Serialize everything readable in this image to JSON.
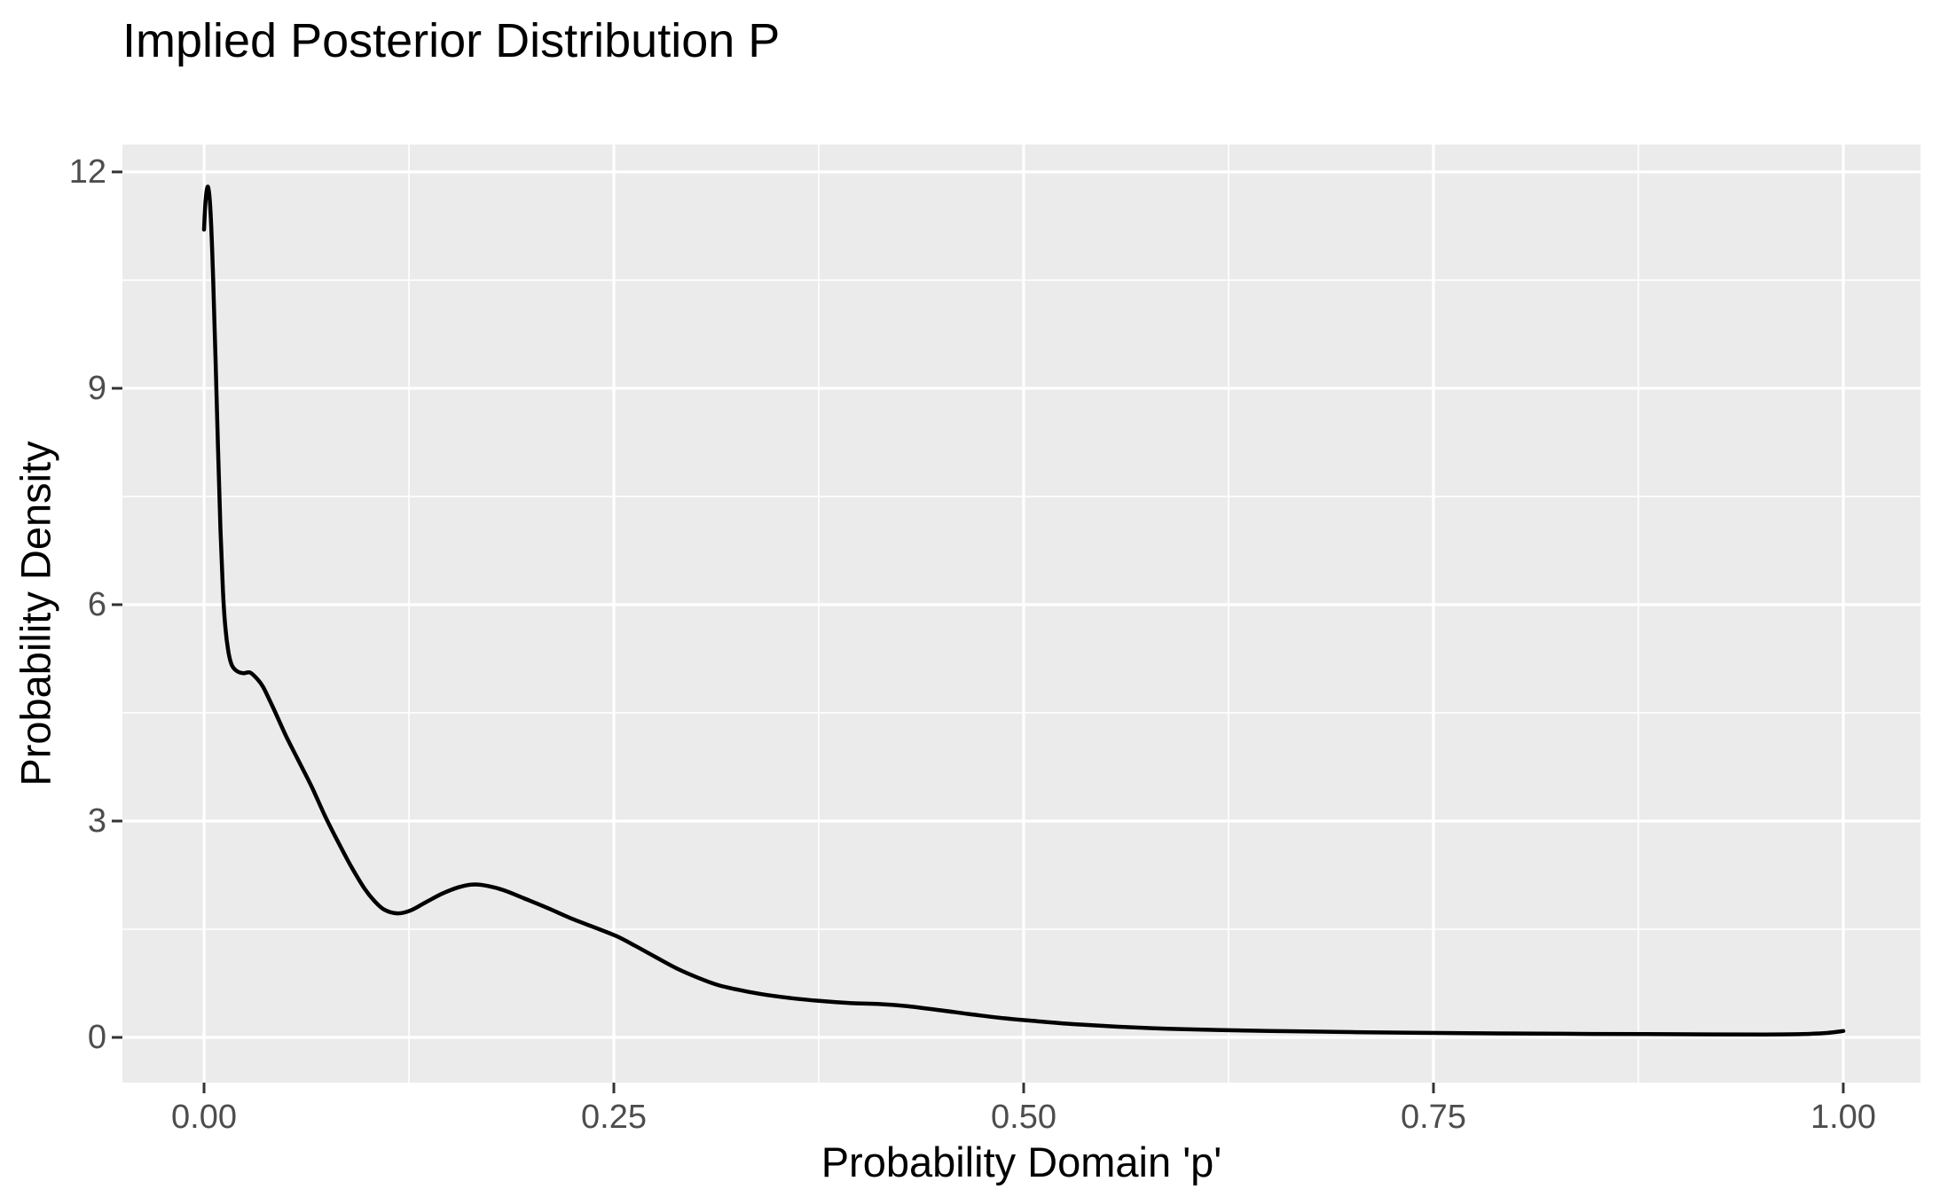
{
  "title": "Implied Posterior Distribution P",
  "colors": {
    "background": "#FFFFFF",
    "panel_background": "#EBEBEB",
    "gridline": "#FFFFFF",
    "curve": "#000000",
    "tick_label": "#4D4D4D",
    "tick_mark": "#333333",
    "title_text": "#000000"
  },
  "chart_data": {
    "type": "line",
    "subtype": "density",
    "title": "Implied Posterior Distribution P",
    "xlabel": "Probability Domain 'p'",
    "ylabel": "Probability Density",
    "legend": "none",
    "grid": "on",
    "x_ticks": [
      {
        "v": 0.0,
        "label": "0.00"
      },
      {
        "v": 0.25,
        "label": "0.25"
      },
      {
        "v": 0.5,
        "label": "0.50"
      },
      {
        "v": 0.75,
        "label": "0.75"
      },
      {
        "v": 1.0,
        "label": "1.00"
      }
    ],
    "y_ticks": [
      {
        "v": 0,
        "label": "0"
      },
      {
        "v": 3,
        "label": "3"
      },
      {
        "v": 6,
        "label": "6"
      },
      {
        "v": 9,
        "label": "9"
      },
      {
        "v": 12,
        "label": "12"
      }
    ],
    "x_minor": [
      0.125,
      0.375,
      0.625,
      0.875
    ],
    "y_minor": [
      1.5,
      4.5,
      7.5,
      10.5
    ],
    "xlim": [
      -0.0498,
      1.0471
    ],
    "ylim": [
      -0.627,
      12.38
    ],
    "peak": {
      "p": 0.0025,
      "density": 11.8
    },
    "points": [
      [
        0.0,
        11.2
      ],
      [
        0.001,
        11.62
      ],
      [
        0.0025,
        11.79
      ],
      [
        0.004,
        11.43
      ],
      [
        0.0055,
        10.55
      ],
      [
        0.007,
        9.4
      ],
      [
        0.0085,
        8.2
      ],
      [
        0.01,
        7.05
      ],
      [
        0.0115,
        6.2
      ],
      [
        0.013,
        5.68
      ],
      [
        0.015,
        5.33
      ],
      [
        0.017,
        5.16
      ],
      [
        0.02,
        5.08
      ],
      [
        0.024,
        5.05
      ],
      [
        0.028,
        5.06
      ],
      [
        0.032,
        4.98
      ],
      [
        0.036,
        4.86
      ],
      [
        0.042,
        4.58
      ],
      [
        0.05,
        4.18
      ],
      [
        0.058,
        3.82
      ],
      [
        0.066,
        3.46
      ],
      [
        0.074,
        3.06
      ],
      [
        0.082,
        2.7
      ],
      [
        0.09,
        2.36
      ],
      [
        0.098,
        2.06
      ],
      [
        0.104,
        1.89
      ],
      [
        0.11,
        1.77
      ],
      [
        0.118,
        1.72
      ],
      [
        0.126,
        1.76
      ],
      [
        0.135,
        1.87
      ],
      [
        0.145,
        1.99
      ],
      [
        0.155,
        2.08
      ],
      [
        0.164,
        2.12
      ],
      [
        0.173,
        2.1
      ],
      [
        0.183,
        2.04
      ],
      [
        0.195,
        1.93
      ],
      [
        0.21,
        1.79
      ],
      [
        0.225,
        1.64
      ],
      [
        0.24,
        1.51
      ],
      [
        0.252,
        1.4
      ],
      [
        0.263,
        1.27
      ],
      [
        0.275,
        1.12
      ],
      [
        0.288,
        0.96
      ],
      [
        0.3,
        0.84
      ],
      [
        0.313,
        0.73
      ],
      [
        0.326,
        0.66
      ],
      [
        0.34,
        0.6
      ],
      [
        0.358,
        0.545
      ],
      [
        0.376,
        0.505
      ],
      [
        0.395,
        0.475
      ],
      [
        0.412,
        0.462
      ],
      [
        0.428,
        0.435
      ],
      [
        0.448,
        0.38
      ],
      [
        0.468,
        0.32
      ],
      [
        0.488,
        0.265
      ],
      [
        0.508,
        0.225
      ],
      [
        0.53,
        0.185
      ],
      [
        0.558,
        0.148
      ],
      [
        0.588,
        0.12
      ],
      [
        0.618,
        0.103
      ],
      [
        0.65,
        0.09
      ],
      [
        0.69,
        0.077
      ],
      [
        0.73,
        0.066
      ],
      [
        0.78,
        0.057
      ],
      [
        0.83,
        0.05
      ],
      [
        0.88,
        0.045
      ],
      [
        0.92,
        0.042
      ],
      [
        0.952,
        0.04
      ],
      [
        0.975,
        0.046
      ],
      [
        0.99,
        0.062
      ],
      [
        1.0,
        0.088
      ]
    ]
  }
}
